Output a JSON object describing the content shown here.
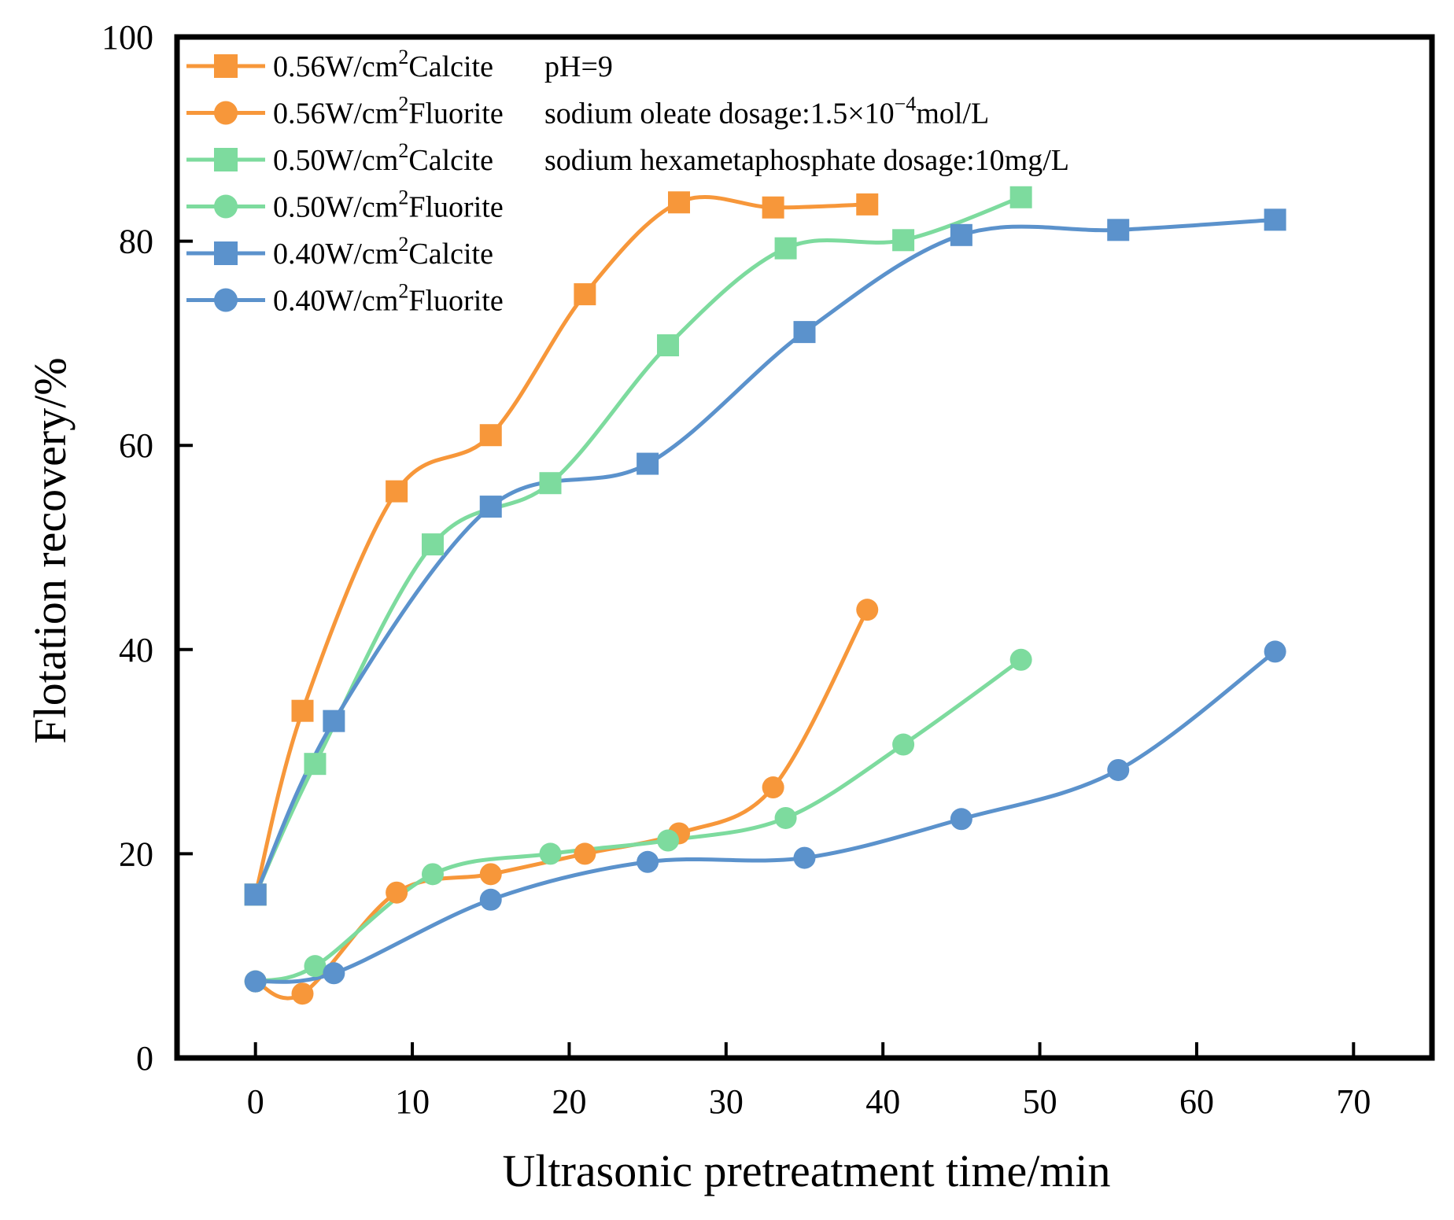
{
  "chart_data": {
    "type": "line",
    "title": "",
    "xlabel": "Ultrasonic pretreatment time/min",
    "ylabel": "Flotation recovery/%",
    "xlim": [
      -5,
      75
    ],
    "ylim": [
      0,
      100
    ],
    "xticks": [
      0,
      10,
      20,
      30,
      40,
      50,
      60,
      70
    ],
    "yticks": [
      0,
      20,
      40,
      60,
      80,
      100
    ],
    "xtick_labels": [
      "0",
      "10",
      "20",
      "30",
      "40",
      "50",
      "60",
      "70"
    ],
    "ytick_labels": [
      "0",
      "20",
      "40",
      "60",
      "80",
      "100"
    ],
    "grid": false,
    "legend_position": "top-left",
    "annotations": [
      {
        "text": "pH=9"
      },
      {
        "text": "sodium oleate dosage:1.5×10",
        "superscript": "−4",
        "suffix": "mol/L"
      },
      {
        "text": "sodium hexametaphosphate dosage:10mg/L"
      }
    ],
    "series": [
      {
        "name": "0.56W/cm2Calcite",
        "label_main": "0.56W/cm",
        "label_sup": "2",
        "label_tail": "Calcite",
        "color": "#F7973A",
        "marker": "square",
        "x": [
          0,
          3,
          9,
          15,
          21,
          27,
          33,
          39
        ],
        "y": [
          16,
          34,
          55.5,
          61,
          74.8,
          83.8,
          83.3,
          83.6
        ]
      },
      {
        "name": "0.56W/cm2Fluorite",
        "label_main": "0.56W/cm",
        "label_sup": "2",
        "label_tail": "Fluorite",
        "color": "#F7973A",
        "marker": "circle",
        "x": [
          0,
          3,
          9,
          15,
          21,
          27,
          33,
          39
        ],
        "y": [
          7.5,
          6.3,
          16.2,
          18,
          20,
          22,
          26.5,
          43.9
        ]
      },
      {
        "name": "0.50W/cm2Calcite",
        "label_main": "0.50W/cm",
        "label_sup": "2",
        "label_tail": "Calcite",
        "color": "#7DDB9E",
        "marker": "square",
        "x": [
          0,
          3.8,
          11.3,
          18.8,
          26.3,
          33.8,
          41.3,
          48.8
        ],
        "y": [
          16,
          28.8,
          50.3,
          56.3,
          69.8,
          79.3,
          80.1,
          84.3
        ]
      },
      {
        "name": "0.50W/cm2Fluorite",
        "label_main": "0.50W/cm",
        "label_sup": "2",
        "label_tail": "Fluorite",
        "color": "#7DDB9E",
        "marker": "circle",
        "x": [
          0,
          3.8,
          11.3,
          18.8,
          26.3,
          33.8,
          41.3,
          48.8
        ],
        "y": [
          7.5,
          9,
          18,
          20,
          21.3,
          23.5,
          30.7,
          39
        ]
      },
      {
        "name": "0.40W/cm2Calcite",
        "label_main": "0.40W/cm",
        "label_sup": "2",
        "label_tail": "Calcite",
        "color": "#5B92CC",
        "marker": "square",
        "x": [
          0,
          5,
          15,
          25,
          35,
          45,
          55,
          65
        ],
        "y": [
          16,
          33,
          54,
          58.2,
          71.1,
          80.6,
          81.1,
          82.1
        ]
      },
      {
        "name": "0.40W/cm2Fluorite",
        "label_main": "0.40W/cm",
        "label_sup": "2",
        "label_tail": "Fluorite",
        "color": "#5B92CC",
        "marker": "circle",
        "x": [
          0,
          5,
          15,
          25,
          35,
          45,
          55,
          65
        ],
        "y": [
          7.5,
          8.3,
          15.5,
          19.2,
          19.6,
          23.4,
          28.2,
          39.8
        ]
      }
    ]
  }
}
